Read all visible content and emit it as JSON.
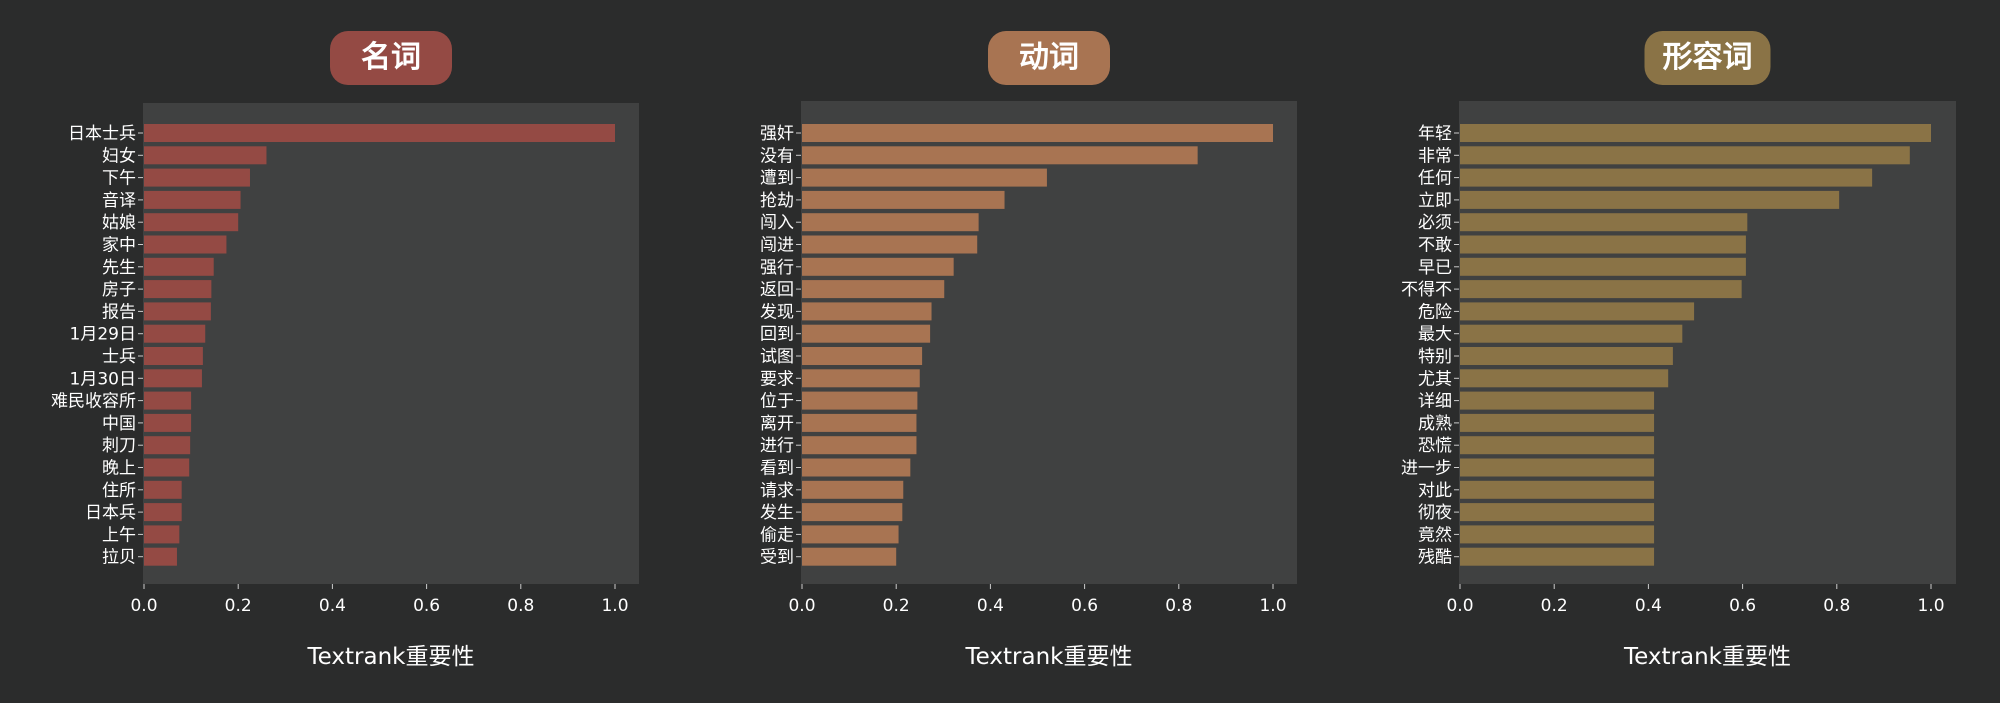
{
  "chart_data": [
    {
      "type": "bar",
      "orientation": "horizontal",
      "title": "名词",
      "xlabel": "Textrank重要性",
      "xlim": [
        0,
        1.05
      ],
      "xticks": [
        "0.0",
        "0.2",
        "0.4",
        "0.6",
        "0.8",
        "1.0"
      ],
      "color": "#944a44",
      "categories": [
        "日本士兵",
        "妇女",
        "下午",
        "音译",
        "姑娘",
        "家中",
        "先生",
        "房子",
        "报告",
        "1月29日",
        "士兵",
        "1月30日",
        "难民收容所",
        "中国",
        "刺刀",
        "晚上",
        "住所",
        "日本兵",
        "上午",
        "拉贝"
      ],
      "values": [
        1.0,
        0.26,
        0.225,
        0.205,
        0.2,
        0.175,
        0.148,
        0.143,
        0.142,
        0.13,
        0.125,
        0.123,
        0.1,
        0.1,
        0.098,
        0.096,
        0.08,
        0.08,
        0.075,
        0.07
      ]
    },
    {
      "type": "bar",
      "orientation": "horizontal",
      "title": "动词",
      "xlabel": "Textrank重要性",
      "xlim": [
        0,
        1.05
      ],
      "xticks": [
        "0.0",
        "0.2",
        "0.4",
        "0.6",
        "0.8",
        "1.0"
      ],
      "color": "#a87452",
      "categories": [
        "强奸",
        "没有",
        "遭到",
        "抢劫",
        "闯入",
        "闯进",
        "强行",
        "返回",
        "发现",
        "回到",
        "试图",
        "要求",
        "位于",
        "离开",
        "进行",
        "看到",
        "请求",
        "发生",
        "偷走",
        "受到"
      ],
      "values": [
        1.0,
        0.84,
        0.52,
        0.43,
        0.375,
        0.372,
        0.322,
        0.302,
        0.275,
        0.272,
        0.255,
        0.25,
        0.245,
        0.243,
        0.243,
        0.23,
        0.215,
        0.213,
        0.205,
        0.2
      ]
    },
    {
      "type": "bar",
      "orientation": "horizontal",
      "title": "形容词",
      "xlabel": "Textrank重要性",
      "xlim": [
        0,
        1.05
      ],
      "xticks": [
        "0.0",
        "0.2",
        "0.4",
        "0.6",
        "0.8",
        "1.0"
      ],
      "color": "#8a7346",
      "categories": [
        "年轻",
        "非常",
        "任何",
        "立即",
        "必须",
        "不敢",
        "早已",
        "不得不",
        "危险",
        "最大",
        "特别",
        "尤其",
        "详细",
        "成熟",
        "恐慌",
        "进一步",
        "对此",
        "彻夜",
        "竟然",
        "残酷"
      ],
      "values": [
        1.0,
        0.955,
        0.875,
        0.805,
        0.61,
        0.607,
        0.607,
        0.598,
        0.497,
        0.472,
        0.452,
        0.442,
        0.412,
        0.412,
        0.412,
        0.412,
        0.412,
        0.412,
        0.412,
        0.412
      ]
    }
  ]
}
